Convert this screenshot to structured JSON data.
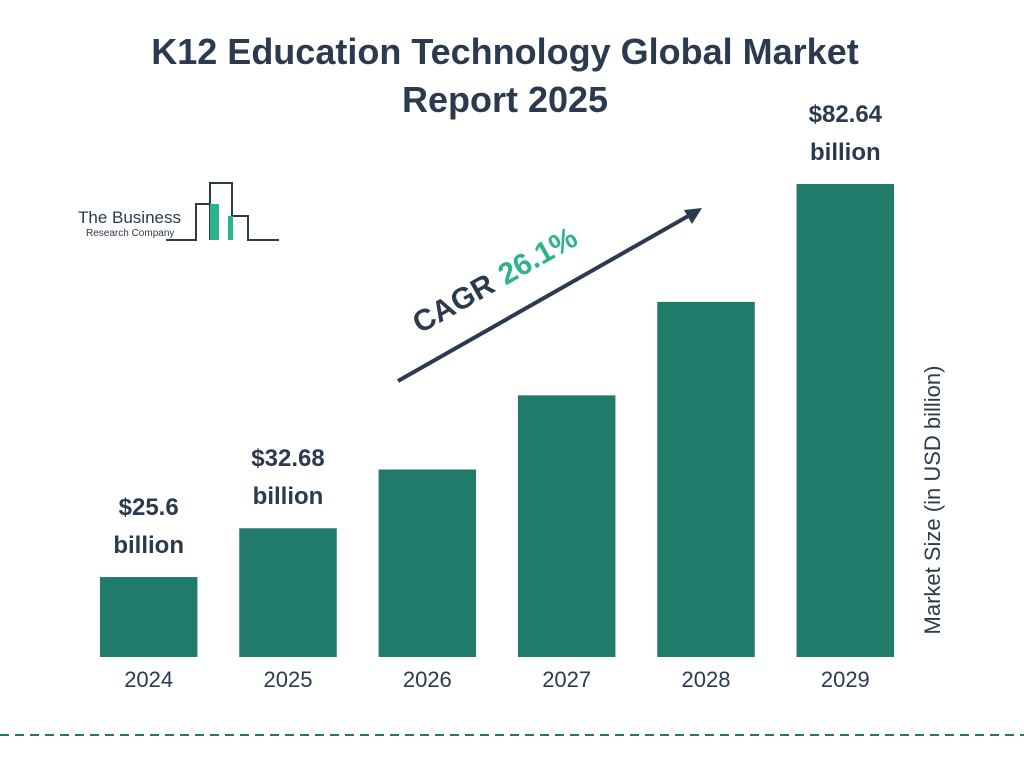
{
  "chart_data": {
    "type": "bar",
    "title": "K12 Education Technology Global Market Report 2025",
    "categories": [
      "2024",
      "2025",
      "2026",
      "2027",
      "2028",
      "2029"
    ],
    "values": [
      25.6,
      32.68,
      41.21,
      51.97,
      65.53,
      82.64
    ],
    "value_labels": [
      "$25.6 billion",
      "$32.68 billion",
      null,
      null,
      null,
      "$82.64 billion"
    ],
    "color": "#217b6b",
    "ylim": [
      14,
      83
    ],
    "y_label": "Market Size (in USD billion)",
    "annotation": {
      "label": "CAGR",
      "value": "26.1%"
    }
  },
  "logo": {
    "line1": "The Business",
    "line2": "Research Company"
  }
}
